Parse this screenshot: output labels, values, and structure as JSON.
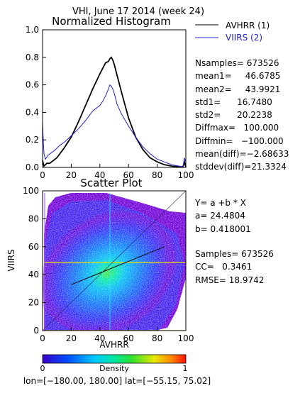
{
  "page_title": "VHI,  June 17 2014 (week 24)",
  "histogram": {
    "title": "Normalized Histogram",
    "legend": [
      {
        "label": "AVHRR (1)",
        "color": "#000000"
      },
      {
        "label": "VIIRS (2)",
        "color": "#2222cc"
      }
    ],
    "stats": [
      "Nsamples= 673526",
      "mean1=     46.6785",
      "mean2=     43.9921",
      "std1=      16.7480",
      "std2=      20.2238",
      "Diffmax=   100.000",
      "Diffmin=   −100.000",
      "mean(diff)=−2.68633",
      "stddev(diff)=21.3324"
    ]
  },
  "scatter": {
    "title": "Scatter Plot",
    "fit_lines": [
      "Y= a +b * X",
      "a= 24.4804",
      "b= 0.418001"
    ],
    "stats": [
      "Samples= 673526",
      "CC=   0.3461",
      "RMSE= 18.9742"
    ]
  },
  "colorbar": {
    "label": "Density",
    "min_label": "0",
    "max_label": "1"
  },
  "footer": "lon=[−180.00, 180.00] lat=[−55.15, 75.02]",
  "chart_data": [
    {
      "type": "line",
      "title": "Normalized Histogram",
      "xlabel": "",
      "ylabel": "",
      "xlim": [
        0,
        100
      ],
      "ylim": [
        0,
        1.0
      ],
      "xticks": [
        "0",
        "20",
        "40",
        "60",
        "80",
        "100"
      ],
      "yticks": [
        "0.0",
        "0.2",
        "0.4",
        "0.6",
        "0.8",
        "1.0"
      ],
      "series": [
        {
          "name": "AVHRR (1)",
          "color": "#000000",
          "x": [
            0,
            1,
            2,
            3,
            5,
            10,
            15,
            20,
            25,
            30,
            35,
            40,
            42,
            44,
            46,
            47,
            48,
            49,
            50,
            52,
            55,
            60,
            65,
            70,
            75,
            80,
            85,
            90,
            95,
            98,
            99,
            100
          ],
          "y": [
            0.05,
            0.01,
            0.02,
            0.03,
            0.03,
            0.07,
            0.14,
            0.22,
            0.33,
            0.45,
            0.57,
            0.68,
            0.72,
            0.76,
            0.77,
            0.79,
            0.8,
            0.78,
            0.75,
            0.67,
            0.55,
            0.36,
            0.22,
            0.13,
            0.07,
            0.04,
            0.02,
            0.01,
            0.005,
            0.005,
            0.04,
            0.0
          ]
        },
        {
          "name": "VIIRS (2)",
          "color": "#2222cc",
          "x": [
            0,
            0.5,
            1,
            2,
            4,
            8,
            12,
            16,
            20,
            25,
            30,
            35,
            40,
            42,
            44,
            46,
            47,
            48,
            49,
            50,
            52,
            55,
            60,
            65,
            70,
            75,
            80,
            85,
            90,
            95,
            98,
            99,
            100
          ],
          "y": [
            0.33,
            0.2,
            0.1,
            0.06,
            0.09,
            0.12,
            0.16,
            0.19,
            0.23,
            0.28,
            0.34,
            0.41,
            0.45,
            0.48,
            0.52,
            0.57,
            0.6,
            0.59,
            0.57,
            0.54,
            0.46,
            0.39,
            0.3,
            0.22,
            0.15,
            0.1,
            0.06,
            0.04,
            0.02,
            0.01,
            0.005,
            0.07,
            0.04
          ]
        }
      ]
    },
    {
      "type": "heatmap",
      "title": "Scatter Plot",
      "xlabel": "AVHRR",
      "ylabel": "VIIRS",
      "xlim": [
        0,
        100
      ],
      "ylim": [
        0,
        100
      ],
      "xticks": [
        "0",
        "20",
        "40",
        "60",
        "80",
        "100"
      ],
      "yticks": [
        "0",
        "20",
        "40",
        "60",
        "80",
        "100"
      ],
      "density_peak": [
        47,
        40
      ],
      "fit": {
        "a": 24.4804,
        "b": 0.418001
      },
      "colorbar": {
        "range": [
          0,
          1
        ],
        "label": "Density"
      }
    }
  ]
}
